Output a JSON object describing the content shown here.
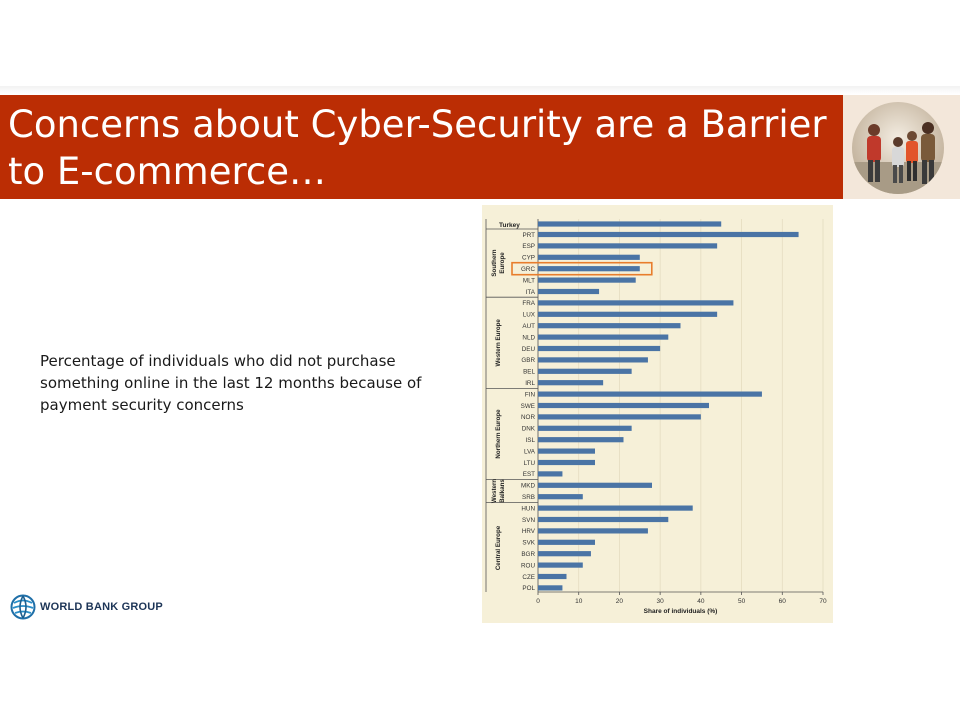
{
  "slide": {
    "title_line1": "Concerns about Cyber-Security are a Barrier",
    "title_line2": "to E-commerce…",
    "caption": "Percentage of individuals who did not purchase something online in the last 12 months because of payment security concerns",
    "logo_text": "WORLD BANK GROUP"
  },
  "colors": {
    "title_band": "#bb2d04",
    "bar": "#4a74a5",
    "highlight": "#e87d2c",
    "panel": "#f6f0d8"
  },
  "icons": {
    "logo": "globe-icon",
    "photo": "people-walking-photo"
  },
  "chart_data": {
    "type": "bar",
    "orientation": "horizontal",
    "xlabel": "Share of individuals (%)",
    "ylabel": "",
    "xlim": [
      0,
      70
    ],
    "xticks": [
      0,
      10,
      20,
      30,
      40,
      50,
      60,
      70
    ],
    "grid": true,
    "highlighted_category": "GRC",
    "categories": [
      "PRT",
      "ESP",
      "CYP",
      "GRC",
      "MLT",
      "ITA",
      "FRA",
      "LUX",
      "AUT",
      "NLD",
      "DEU",
      "GBR",
      "BEL",
      "IRL",
      "FIN",
      "SWE",
      "NOR",
      "DNK",
      "ISL",
      "LVA",
      "LTU",
      "EST",
      "MKD",
      "SRB",
      "HUN",
      "SVN",
      "HRV",
      "SVK",
      "BGR",
      "ROU",
      "CZE",
      "POL"
    ],
    "values": [
      64,
      44,
      25,
      25,
      24,
      15,
      48,
      44,
      35,
      32,
      30,
      27,
      23,
      16,
      55,
      42,
      40,
      23,
      21,
      14,
      14,
      6,
      28,
      11,
      38,
      32,
      27,
      14,
      13,
      11,
      7,
      6
    ],
    "turkey": {
      "label": "Turkey",
      "value": 45
    },
    "groups": [
      {
        "label": "Southern Europe",
        "lines": [
          "Southern",
          "Europe"
        ],
        "start": 0,
        "end": 5
      },
      {
        "label": "Western Europe",
        "lines": [
          "Western Europe"
        ],
        "start": 6,
        "end": 13
      },
      {
        "label": "Northern Europe",
        "lines": [
          "Northern Europe"
        ],
        "start": 14,
        "end": 21
      },
      {
        "label": "Western Balkans",
        "lines": [
          "Western",
          "Balkans"
        ],
        "start": 22,
        "end": 23
      },
      {
        "label": "Central Europe",
        "lines": [
          "Central Europe"
        ],
        "start": 24,
        "end": 31
      }
    ]
  }
}
